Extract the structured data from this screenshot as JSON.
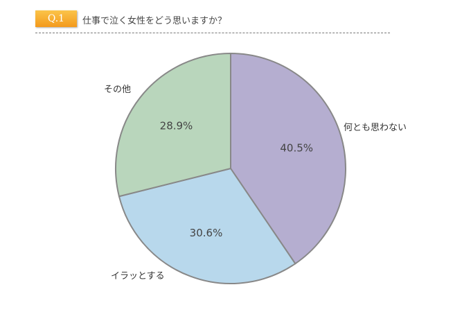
{
  "header": {
    "badge": "Q.1",
    "title": "仕事で泣く女性をどう思いますか？"
  },
  "chart_data": {
    "type": "pie",
    "title": "仕事で泣く女性をどう思いますか？",
    "categories": [
      "何とも思わない",
      "イラッとする",
      "その他"
    ],
    "values": [
      40.5,
      30.6,
      28.9
    ],
    "data_labels": [
      "40.5%",
      "30.6%",
      "28.9%"
    ],
    "colors": [
      "#b5aed0",
      "#b8d8ec",
      "#b9d6bc"
    ],
    "start": "top",
    "direction": "clockwise"
  }
}
